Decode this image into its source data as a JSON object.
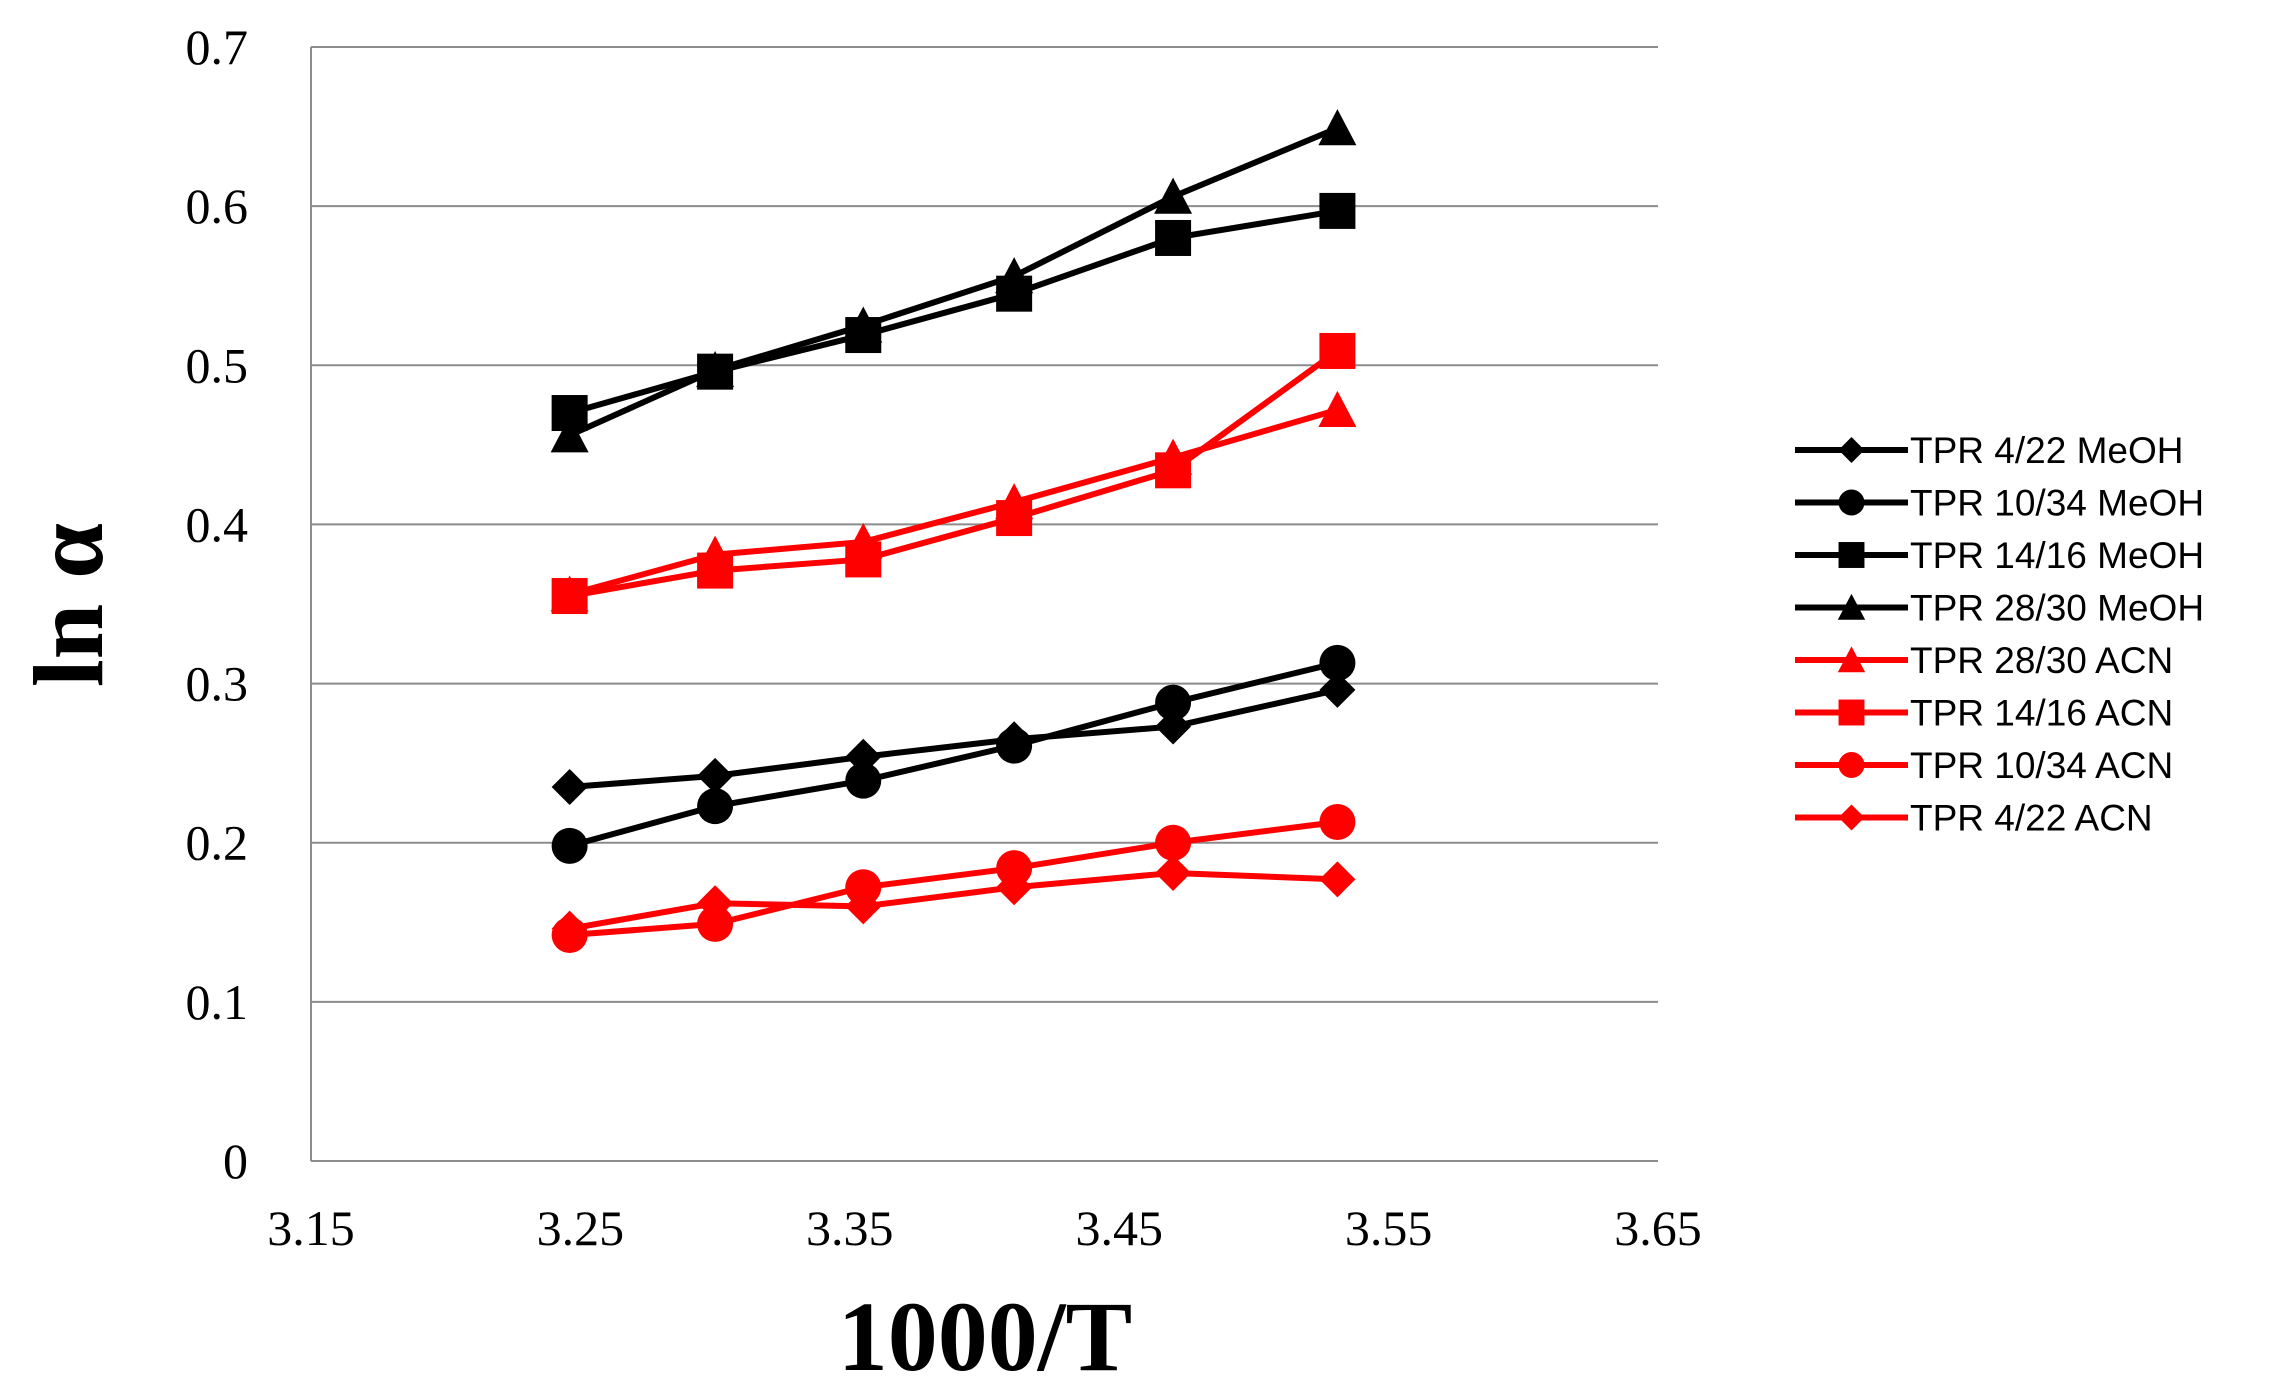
{
  "chart_data": {
    "type": "line",
    "title": "",
    "xlabel": "1000/T",
    "ylabel": "ln α",
    "xlim": [
      3.15,
      3.65
    ],
    "ylim": [
      0,
      0.7
    ],
    "x_ticks": [
      "3.15",
      "3.25",
      "3.35",
      "3.45",
      "3.55",
      "3.65"
    ],
    "y_ticks": [
      "0",
      "0.1",
      "0.2",
      "0.3",
      "0.4",
      "0.5",
      "0.6",
      "0.7"
    ],
    "grid": "horizontal",
    "legend_position": "right",
    "x": [
      3.246,
      3.3,
      3.355,
      3.411,
      3.47,
      3.531
    ],
    "series": [
      {
        "name": "TPR 4/22 MeOH",
        "color": "#000000",
        "marker": "diamond",
        "values": [
          0.235,
          0.242,
          0.254,
          0.265,
          0.273,
          0.296
        ]
      },
      {
        "name": "TPR 10/34 MeOH",
        "color": "#000000",
        "marker": "circle",
        "values": [
          0.198,
          0.223,
          0.239,
          0.261,
          0.288,
          0.313
        ]
      },
      {
        "name": "TPR 14/16 MeOH",
        "color": "#000000",
        "marker": "square",
        "values": [
          0.47,
          0.496,
          0.519,
          0.545,
          0.58,
          0.597
        ]
      },
      {
        "name": "TPR 28/30 MeOH",
        "color": "#000000",
        "marker": "triangle",
        "values": [
          0.456,
          0.497,
          0.525,
          0.556,
          0.606,
          0.649
        ]
      },
      {
        "name": "TPR 28/30 ACN",
        "color": "#ff0000",
        "marker": "triangle",
        "values": [
          0.356,
          0.381,
          0.389,
          0.414,
          0.442,
          0.472
        ]
      },
      {
        "name": "TPR 14/16 ACN",
        "color": "#ff0000",
        "marker": "square",
        "values": [
          0.355,
          0.371,
          0.378,
          0.404,
          0.434,
          0.509
        ]
      },
      {
        "name": "TPR 10/34 ACN",
        "color": "#ff0000",
        "marker": "circle",
        "values": [
          0.142,
          0.149,
          0.172,
          0.184,
          0.2,
          0.213
        ]
      },
      {
        "name": "TPR 4/22 ACN",
        "color": "#ff0000",
        "marker": "diamond",
        "values": [
          0.146,
          0.162,
          0.16,
          0.172,
          0.181,
          0.177
        ]
      }
    ]
  }
}
